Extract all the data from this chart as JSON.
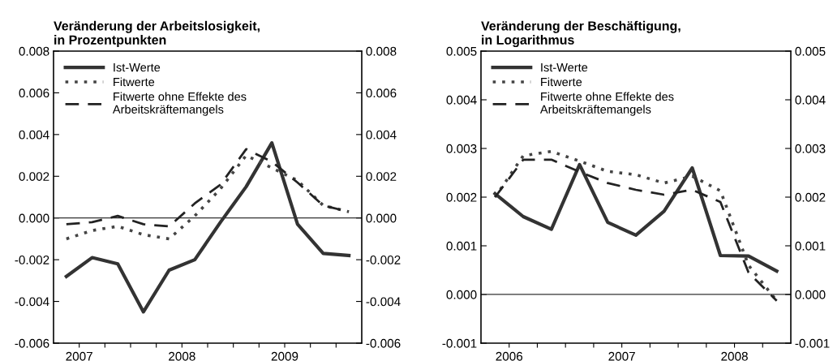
{
  "chart_data": [
    {
      "type": "line",
      "title": "Veränderung der Arbeitslosigkeit,\nin Prozentpunkten",
      "x": [
        2006.875,
        2007.125,
        2007.375,
        2007.625,
        2007.875,
        2008.125,
        2008.375,
        2008.625,
        2008.875,
        2009.125,
        2009.375,
        2009.625
      ],
      "series": [
        {
          "name": "Ist-Werte",
          "color": "#333333",
          "line_style": "solid",
          "values": [
            -0.0028,
            -0.0019,
            -0.0022,
            -0.0045,
            -0.0025,
            -0.002,
            -0.0002,
            0.0015,
            0.0036,
            -0.0003,
            -0.0017,
            -0.0018
          ]
        },
        {
          "name": "Fitwerte",
          "color": "#444444",
          "line_style": "dotted",
          "values": [
            -0.001,
            -0.0006,
            -0.0004,
            -0.0008,
            -0.001,
            0.0001,
            0.0014,
            0.003,
            0.0024,
            0.0018,
            0.0006,
            0.0003
          ]
        },
        {
          "name": "Fitwerte ohne Effekte des\nArbeitskräftemangels",
          "color": "#222222",
          "line_style": "dashed",
          "values": [
            -0.0003,
            -0.0002,
            0.0001,
            -0.0003,
            -0.0004,
            0.0007,
            0.0016,
            0.0033,
            0.0027,
            0.0017,
            0.0006,
            0.0003
          ]
        }
      ],
      "xlim": [
        2006.75,
        2009.75
      ],
      "xticks": [
        2007,
        {
          "value": 2007.25,
          "label": null
        },
        {
          "value": 2007.5,
          "label": null
        },
        {
          "value": 2007.75,
          "label": null
        },
        2008,
        {
          "value": 2008.25,
          "label": null
        },
        {
          "value": 2008.5,
          "label": null
        },
        {
          "value": 2008.75,
          "label": null
        },
        2009,
        {
          "value": 2009.25,
          "label": null
        },
        {
          "value": 2009.5,
          "label": null
        }
      ],
      "ylim": [
        -0.006,
        0.008
      ],
      "yticks": [
        {
          "value": -0.006,
          "label": "-0.006"
        },
        {
          "value": -0.004,
          "label": "-0.004"
        },
        {
          "value": -0.002,
          "label": "-0.002"
        },
        {
          "value": 0,
          "label": "0.000"
        },
        {
          "value": 0.002,
          "label": "0.002"
        },
        {
          "value": 0.004,
          "label": "0.004"
        },
        {
          "value": 0.006,
          "label": "0.006"
        },
        {
          "value": 0.008,
          "label": "0.008"
        }
      ],
      "y2lim": [
        -0.006,
        0.008
      ],
      "y2ticks": [
        {
          "value": -0.006,
          "label": "-0.006"
        },
        {
          "value": -0.004,
          "label": "-0.004"
        },
        {
          "value": -0.002,
          "label": "-0.002"
        },
        {
          "value": 0,
          "label": "0.000"
        },
        {
          "value": 0.002,
          "label": "0.002"
        },
        {
          "value": 0.004,
          "label": "0.004"
        },
        {
          "value": 0.006,
          "label": "0.006"
        },
        {
          "value": 0.008,
          "label": "0.008"
        }
      ],
      "ref_lines": [
        {
          "axis": "y",
          "value": 0,
          "color": "#333333"
        }
      ],
      "grid": false,
      "legend": "top left",
      "marker": "none"
    },
    {
      "type": "line",
      "title": "Veränderung der Beschäftigung,\nin Logarithmus",
      "x": [
        2005.875,
        2006.125,
        2006.375,
        2006.625,
        2006.875,
        2007.125,
        2007.375,
        2007.625,
        2007.875,
        2008.125,
        2008.375
      ],
      "series": [
        {
          "name": "Ist-Werte",
          "color": "#333333",
          "line_style": "solid",
          "values": [
            0.00207,
            0.0016,
            0.00134,
            0.00267,
            0.00148,
            0.00122,
            0.00171,
            0.0026,
            0.0008,
            0.00079,
            0.00048
          ]
        },
        {
          "name": "Fitwerte",
          "color": "#444444",
          "line_style": "dotted",
          "values": [
            0.002,
            0.00285,
            0.00294,
            0.00274,
            0.00253,
            0.00246,
            0.00229,
            0.00243,
            0.00213,
            0.0006,
            -0.00013
          ]
        },
        {
          "name": "Fitwerte ohne Effekte des\nArbeitskräftemangels",
          "color": "#222222",
          "line_style": "dashed",
          "values": [
            0.002,
            0.00277,
            0.00277,
            0.00252,
            0.00229,
            0.00215,
            0.00205,
            0.00215,
            0.0019,
            0.00045,
            -0.00013
          ]
        }
      ],
      "xlim": [
        2005.75,
        2008.5
      ],
      "xticks": [
        2006,
        {
          "value": 2006.25,
          "label": null
        },
        {
          "value": 2006.5,
          "label": null
        },
        {
          "value": 2006.75,
          "label": null
        },
        2007,
        {
          "value": 2007.25,
          "label": null
        },
        {
          "value": 2007.5,
          "label": null
        },
        {
          "value": 2007.75,
          "label": null
        },
        2008,
        {
          "value": 2008.25,
          "label": null
        }
      ],
      "ylim": [
        -0.001,
        0.005
      ],
      "yticks": [
        {
          "value": -0.001,
          "label": "-0.001"
        },
        {
          "value": 0,
          "label": "0.000"
        },
        {
          "value": 0.001,
          "label": "0.001"
        },
        {
          "value": 0.002,
          "label": "0.002"
        },
        {
          "value": 0.003,
          "label": "0.003"
        },
        {
          "value": 0.004,
          "label": "0.004"
        },
        {
          "value": 0.005,
          "label": "0.005"
        }
      ],
      "y2lim": [
        -0.001,
        0.005
      ],
      "y2ticks": [
        {
          "value": -0.001,
          "label": "-0.001"
        },
        {
          "value": 0,
          "label": "0.000"
        },
        {
          "value": 0.001,
          "label": "0.001"
        },
        {
          "value": 0.002,
          "label": "0.002"
        },
        {
          "value": 0.003,
          "label": "0.003"
        },
        {
          "value": 0.004,
          "label": "0.004"
        },
        {
          "value": 0.005,
          "label": "0.005"
        }
      ],
      "ref_lines": [
        {
          "axis": "y",
          "value": 0,
          "color": "#333333"
        }
      ],
      "grid": false,
      "legend": "top left",
      "marker": "none"
    }
  ]
}
